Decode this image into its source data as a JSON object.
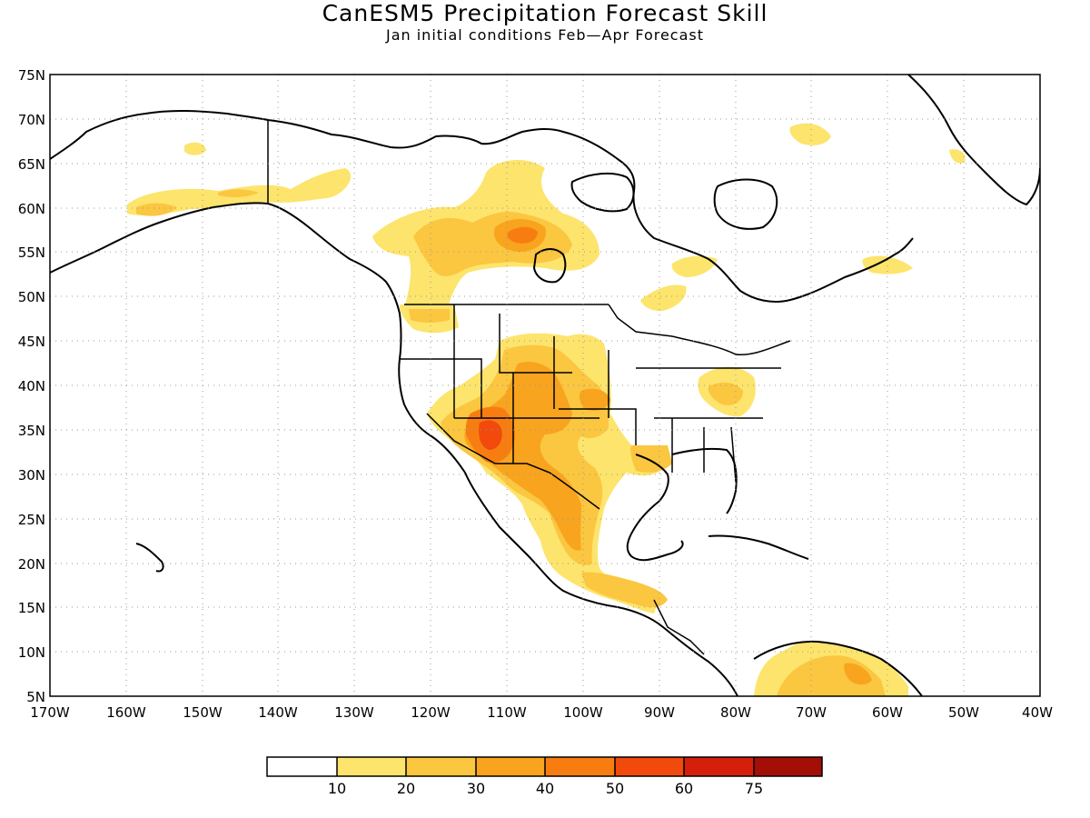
{
  "title": "CanESM5 Precipitation Forecast Skill",
  "subtitle": "Jan initial conditions  Feb—Apr Forecast",
  "map": {
    "lat_labels": [
      "75N",
      "70N",
      "65N",
      "60N",
      "55N",
      "50N",
      "45N",
      "40N",
      "35N",
      "30N",
      "25N",
      "20N",
      "15N",
      "10N",
      "5N"
    ],
    "lon_labels": [
      "170W",
      "160W",
      "150W",
      "140W",
      "130W",
      "120W",
      "110W",
      "100W",
      "90W",
      "80W",
      "70W",
      "60W",
      "50W",
      "40W"
    ],
    "lat_range": [
      5,
      75
    ],
    "lon_range": [
      -170,
      -40
    ],
    "grid": "dotted"
  },
  "colorbar": {
    "labels": [
      "10",
      "20",
      "30",
      "40",
      "50",
      "60",
      "75"
    ],
    "colors": [
      "#ffffff",
      "#fde46c",
      "#fbc640",
      "#f8a41e",
      "#f77d11",
      "#f14a0c",
      "#d4200a",
      "#a30e07"
    ]
  },
  "skill_regions": [
    {
      "name": "southwest-us",
      "level": "50"
    },
    {
      "name": "hudson-bay-west",
      "level": "40"
    },
    {
      "name": "mexico-gulf",
      "level": "30"
    },
    {
      "name": "northern-south-america",
      "level": "30"
    },
    {
      "name": "great-plains",
      "level": "20"
    },
    {
      "name": "alaska",
      "level": "10"
    }
  ]
}
